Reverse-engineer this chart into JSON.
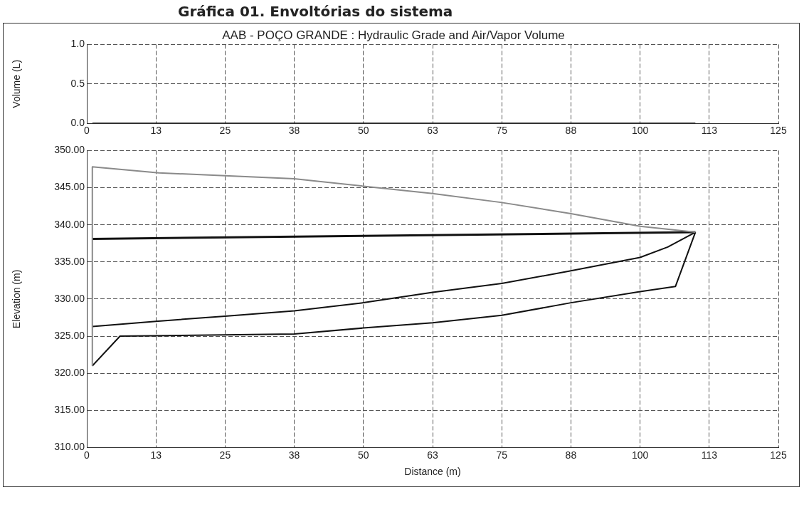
{
  "chart_data": [
    {
      "type": "line",
      "title": "AAB - POÇO GRANDE : Hydraulic Grade and Air/Vapor Volume",
      "ylabel": "Volume (L)",
      "annotations": [
        "Gráfica 01. Envoltórias do sistema"
      ],
      "grid": true,
      "marker": "none",
      "xlim": [
        0,
        125
      ],
      "xticks": [
        0,
        {
          "value": 12.5,
          "label": "13"
        },
        25,
        {
          "value": 37.5,
          "label": "38"
        },
        50,
        {
          "value": 62.5,
          "label": "63"
        },
        75,
        {
          "value": 87.5,
          "label": "88"
        },
        100,
        {
          "value": 112.5,
          "label": "113"
        },
        125
      ],
      "ylim": [
        0,
        1
      ],
      "yticks": [
        {
          "value": 0,
          "label": "0.0"
        },
        {
          "value": 0.5,
          "label": "0.5"
        },
        {
          "value": 1,
          "label": "1.0"
        }
      ],
      "series": [
        {
          "color": "#111111",
          "x": [
            1,
            110
          ],
          "values": [
            0,
            0
          ]
        }
      ]
    },
    {
      "type": "line",
      "xlabel": "Distance (m)",
      "ylabel": "Elevation (m)",
      "grid": true,
      "marker": "none",
      "xlim": [
        0,
        125
      ],
      "xticks": [
        0,
        {
          "value": 12.5,
          "label": "13"
        },
        25,
        {
          "value": 37.5,
          "label": "38"
        },
        50,
        {
          "value": 62.5,
          "label": "63"
        },
        75,
        {
          "value": 87.5,
          "label": "88"
        },
        100,
        {
          "value": 112.5,
          "label": "113"
        },
        125
      ],
      "ylim": [
        310,
        350
      ],
      "yticks": [
        {
          "value": 310,
          "label": "310.00"
        },
        {
          "value": 315,
          "label": "315.00"
        },
        {
          "value": 320,
          "label": "320.00"
        },
        {
          "value": 325,
          "label": "325.00"
        },
        {
          "value": 330,
          "label": "330.00"
        },
        {
          "value": 335,
          "label": "335.00"
        },
        {
          "value": 340,
          "label": "340.00"
        },
        {
          "value": 345,
          "label": "345.00"
        },
        {
          "value": 350,
          "label": "350.00"
        }
      ],
      "series": [
        {
          "color": "#8a8a8a",
          "x": [
            1,
            1,
            13,
            25,
            37.5,
            50,
            62.5,
            75,
            87.5,
            100,
            110
          ],
          "values": [
            321,
            347.8,
            347,
            346.6,
            346.2,
            345.2,
            344.2,
            343,
            341.5,
            339.8,
            339
          ]
        },
        {
          "color": "#111111",
          "x": [
            1,
            110
          ],
          "values": [
            338.1,
            339
          ]
        },
        {
          "color": "#111111",
          "x": [
            1,
            12.5,
            25,
            37.5,
            50,
            62.5,
            75,
            87.5,
            100,
            105,
            110
          ],
          "values": [
            326.3,
            327,
            327.7,
            328.4,
            329.5,
            330.9,
            332.1,
            333.8,
            335.6,
            337,
            339
          ]
        },
        {
          "color": "#111111",
          "x": [
            1,
            6,
            37.5,
            50,
            62.5,
            75,
            87.5,
            100,
            106.4,
            110
          ],
          "values": [
            321,
            325,
            325.3,
            326.1,
            326.8,
            327.8,
            329.5,
            331,
            331.7,
            339
          ]
        }
      ]
    }
  ]
}
